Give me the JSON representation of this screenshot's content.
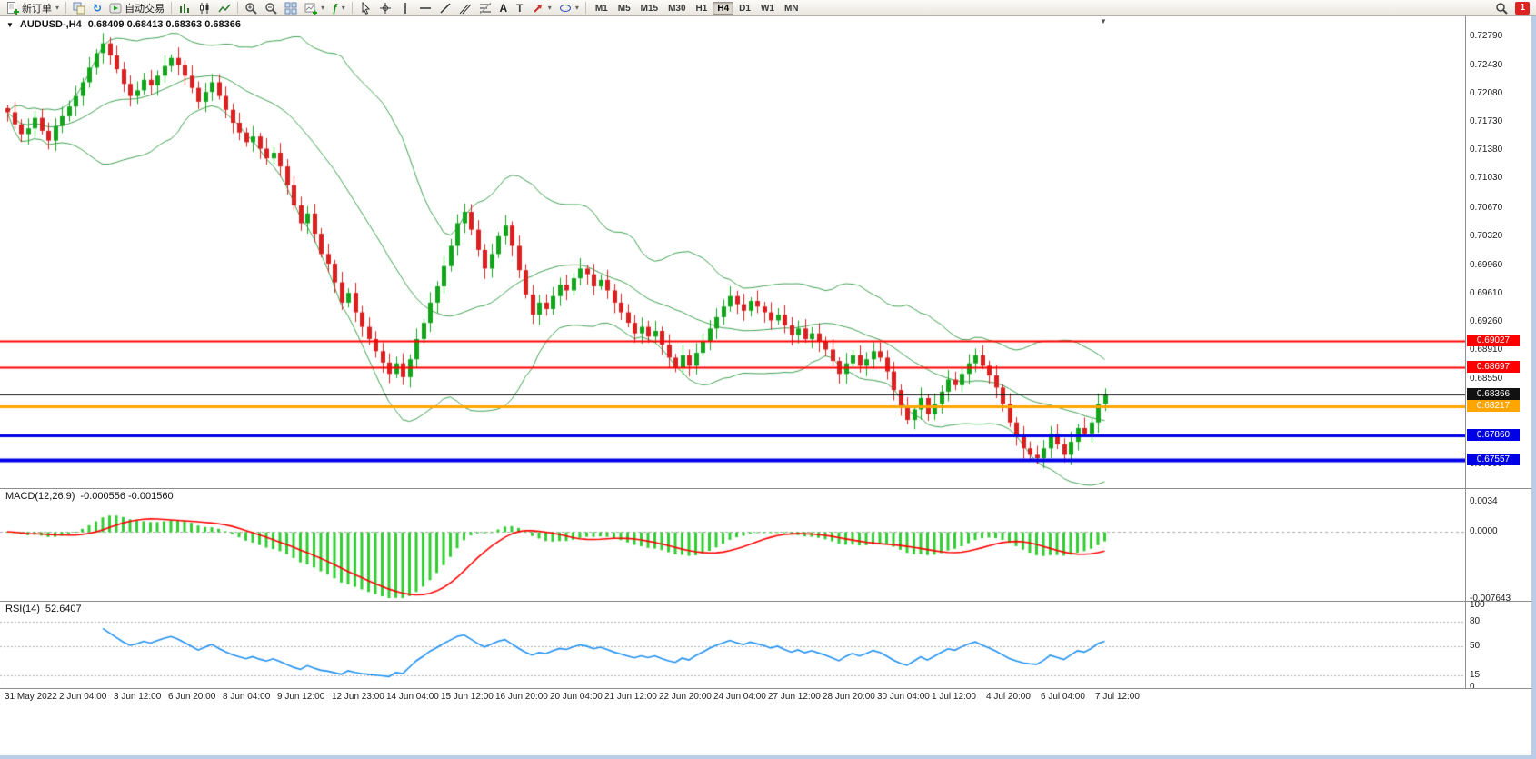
{
  "toolbar": {
    "new_order_label": "新订单",
    "auto_trading_label": "自动交易",
    "indicators_tool_label": "ƒ",
    "refresh_glyph": "↻",
    "text_tool_label": "A",
    "label_tool_label": "T",
    "timeframes": [
      "M1",
      "M5",
      "M15",
      "M30",
      "H1",
      "H4",
      "D1",
      "W1",
      "MN"
    ],
    "active_timeframe": "H4",
    "alert_count": "1"
  },
  "chart": {
    "title": "AUDUSD-,H4",
    "ohlc_line": "0.68409 0.68413 0.68363 0.68366"
  },
  "chart_data": {
    "type": "candlestick",
    "symbol": "AUDUSD-",
    "period": "H4",
    "ohlc_display": {
      "open": "0.68409",
      "high": "0.68413",
      "low": "0.68363",
      "close": "0.68366"
    },
    "price_range": {
      "top": 0.73033,
      "bottom": 0.67209
    },
    "y_axis_ticks": [
      "0.72790",
      "0.72430",
      "0.72080",
      "0.71730",
      "0.71380",
      "0.71030",
      "0.70670",
      "0.70320",
      "0.69960",
      "0.69610",
      "0.69260",
      "0.68910",
      "0.68550",
      "0.67500"
    ],
    "price_lines": [
      {
        "price": 0.69027,
        "label": "0.69027",
        "color": "#FF0000",
        "weight": 2,
        "role": "resistance"
      },
      {
        "price": 0.68697,
        "label": "0.68697",
        "color": "#FF0000",
        "weight": 2,
        "role": "resistance"
      },
      {
        "price": 0.68366,
        "label": "0.68366",
        "color": "#111111",
        "weight": 1,
        "role": "current-price"
      },
      {
        "price": 0.68217,
        "label": "0.68217",
        "color": "#FFA500",
        "weight": 3,
        "role": "support"
      },
      {
        "price": 0.6786,
        "label": "0.67860",
        "color": "#0000E6",
        "weight": 3,
        "role": "support"
      },
      {
        "price": 0.67557,
        "label": "0.67557",
        "color": "#0000E6",
        "weight": 4,
        "role": "support"
      }
    ],
    "x_labels": [
      "31 May 2022",
      "2 Jun 04:00",
      "3 Jun 12:00",
      "6 Jun 20:00",
      "8 Jun 04:00",
      "9 Jun 12:00",
      "12 Jun 23:00",
      "14 Jun 04:00",
      "15 Jun 12:00",
      "16 Jun 20:00",
      "20 Jun 04:00",
      "21 Jun 12:00",
      "22 Jun 20:00",
      "24 Jun 04:00",
      "27 Jun 12:00",
      "28 Jun 20:00",
      "30 Jun 04:00",
      "1 Jul 12:00",
      "4 Jul 20:00",
      "6 Jul 04:00",
      "7 Jul 12:00"
    ],
    "label_step": 8,
    "first_open": 0.719,
    "closes": [
      0.7185,
      0.717,
      0.7158,
      0.7165,
      0.7178,
      0.7162,
      0.715,
      0.7168,
      0.718,
      0.7192,
      0.7205,
      0.7222,
      0.724,
      0.7258,
      0.727,
      0.7255,
      0.7238,
      0.722,
      0.7205,
      0.7212,
      0.7225,
      0.7218,
      0.723,
      0.7242,
      0.7252,
      0.7243,
      0.723,
      0.7215,
      0.7198,
      0.721,
      0.7222,
      0.7205,
      0.7188,
      0.7172,
      0.716,
      0.7148,
      0.7155,
      0.714,
      0.7128,
      0.7135,
      0.7118,
      0.7095,
      0.707,
      0.7048,
      0.706,
      0.7035,
      0.701,
      0.6998,
      0.6975,
      0.695,
      0.6962,
      0.6938,
      0.692,
      0.6905,
      0.689,
      0.6876,
      0.6862,
      0.6875,
      0.6858,
      0.688,
      0.6905,
      0.6925,
      0.695,
      0.697,
      0.6995,
      0.702,
      0.7048,
      0.7062,
      0.704,
      0.7015,
      0.6992,
      0.701,
      0.7032,
      0.7045,
      0.702,
      0.699,
      0.696,
      0.6935,
      0.695,
      0.6942,
      0.6958,
      0.6972,
      0.6965,
      0.698,
      0.6992,
      0.6985,
      0.697,
      0.6978,
      0.6965,
      0.695,
      0.6938,
      0.6925,
      0.6912,
      0.692,
      0.6908,
      0.6915,
      0.6898,
      0.6882,
      0.687,
      0.6885,
      0.6872,
      0.6888,
      0.6902,
      0.6918,
      0.6932,
      0.6945,
      0.6958,
      0.6948,
      0.694,
      0.6952,
      0.6945,
      0.6938,
      0.6928,
      0.6935,
      0.6922,
      0.691,
      0.6918,
      0.6905,
      0.6912,
      0.6902,
      0.6892,
      0.6878,
      0.6862,
      0.6875,
      0.6885,
      0.6872,
      0.688,
      0.689,
      0.6882,
      0.6865,
      0.6842,
      0.682,
      0.6805,
      0.6818,
      0.6832,
      0.6812,
      0.6825,
      0.684,
      0.6855,
      0.6848,
      0.6862,
      0.6875,
      0.6885,
      0.6872,
      0.686,
      0.6845,
      0.6825,
      0.6802,
      0.6785,
      0.677,
      0.6762,
      0.6758,
      0.677,
      0.6788,
      0.6775,
      0.6762,
      0.6778,
      0.6795,
      0.6788,
      0.6802,
      0.6825,
      0.68366
    ],
    "colors": {
      "up": "#12A51B",
      "down": "#D92121",
      "bollinger": "#3FA050",
      "macd_hist": "#32CD32",
      "macd_signal": "#FF0000",
      "rsi": "#2090F0"
    },
    "indicators": {
      "bollinger": {
        "name": "Bollinger Bands",
        "period": 20,
        "deviation": 2
      },
      "macd": {
        "label": "MACD(12,26,9)",
        "values_text": "-0.000556 -0.001560",
        "fast": 12,
        "slow": 26,
        "signal": 9,
        "axis": [
          {
            "v": 0.0034,
            "label": "0.0034"
          },
          {
            "v": 0,
            "label": "0.0000"
          },
          {
            "v": -0.007643,
            "label": "-0.007643"
          }
        ],
        "range": {
          "max": 0.0034,
          "min": -0.007643
        }
      },
      "rsi": {
        "label": "RSI(14)",
        "value_text": "52.6407",
        "period": 14,
        "axis": [
          {
            "v": 100,
            "label": "100"
          },
          {
            "v": 80,
            "label": "80"
          },
          {
            "v": 50,
            "label": "50"
          },
          {
            "v": 15,
            "label": "15"
          },
          {
            "v": 0,
            "label": "0"
          }
        ],
        "levels": [
          80,
          50,
          15
        ]
      }
    }
  }
}
